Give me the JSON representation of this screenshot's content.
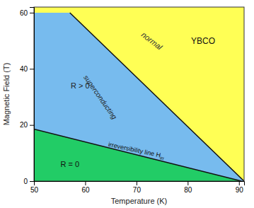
{
  "chart_data": {
    "type": "area",
    "xlabel": "Temperature (K)",
    "ylabel": "Magnetic Field (T)",
    "xlim": [
      50,
      91
    ],
    "ylim": [
      0,
      62
    ],
    "xticks": [
      50,
      60,
      70,
      80,
      90
    ],
    "yticks": [
      0,
      20,
      40,
      60
    ],
    "series": [
      {
        "x": [
          57.0,
          91.0
        ],
        "values": [
          60.0,
          0.0
        ],
        "color": "#111111"
      },
      {
        "x": [
          50.0,
          90.5
        ],
        "values": [
          18.5,
          0.0
        ],
        "color": "#111111"
      }
    ],
    "regions": [
      {
        "color": "#FFFF55"
      },
      {
        "color": "#22CC66"
      },
      {
        "color": "#77BBEE"
      }
    ],
    "annotations": [
      {
        "text": "YBCO",
        "x": 83,
        "y": 50
      },
      {
        "text": "normal",
        "x": 73,
        "y": 50
      },
      {
        "text": "superconducting",
        "x": 63,
        "y": 30
      },
      {
        "text": "R > 0",
        "x": 59,
        "y": 34
      },
      {
        "text": "irreversibility line H",
        "subscript": "irr",
        "x": 70,
        "y": 11
      },
      {
        "text": "R = 0",
        "x": 57,
        "y": 6
      }
    ]
  }
}
